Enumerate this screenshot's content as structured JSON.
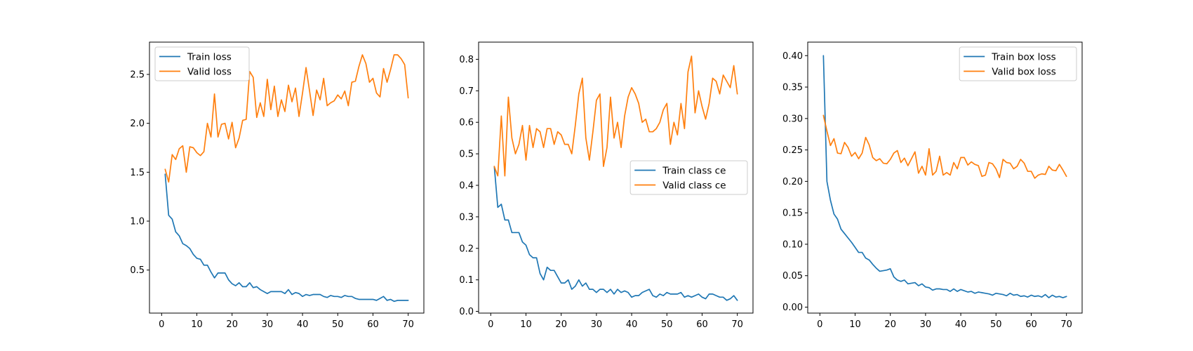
{
  "chart_data": [
    {
      "type": "line",
      "title": "",
      "xlabel": "",
      "ylabel": "",
      "xlim": [
        -3.45,
        74.45
      ],
      "ylim": [
        0.06,
        2.83
      ],
      "xticks": [
        0,
        10,
        20,
        30,
        40,
        50,
        60,
        70
      ],
      "yticks": [
        0.5,
        1.0,
        1.5,
        2.0,
        2.5
      ],
      "ytick_labels": [
        "0.5",
        "1.0",
        "1.5",
        "2.0",
        "2.5"
      ],
      "legend_position": "top-left",
      "x": [
        1,
        2,
        3,
        4,
        5,
        6,
        7,
        8,
        9,
        10,
        11,
        12,
        13,
        14,
        15,
        16,
        17,
        18,
        19,
        20,
        21,
        22,
        23,
        24,
        25,
        26,
        27,
        28,
        29,
        30,
        31,
        32,
        33,
        34,
        35,
        36,
        37,
        38,
        39,
        40,
        41,
        42,
        43,
        44,
        45,
        46,
        47,
        48,
        49,
        50,
        51,
        52,
        53,
        54,
        55,
        56,
        57,
        58,
        59,
        60,
        61,
        62,
        63,
        64,
        65,
        66,
        67,
        68,
        69,
        70
      ],
      "series": [
        {
          "name": "Train loss",
          "color": "#1f77b4",
          "values": [
            1.48,
            1.06,
            1.02,
            0.89,
            0.85,
            0.77,
            0.75,
            0.72,
            0.66,
            0.62,
            0.61,
            0.55,
            0.55,
            0.48,
            0.42,
            0.47,
            0.47,
            0.47,
            0.4,
            0.36,
            0.34,
            0.37,
            0.33,
            0.33,
            0.37,
            0.32,
            0.33,
            0.3,
            0.28,
            0.26,
            0.28,
            0.28,
            0.28,
            0.28,
            0.26,
            0.3,
            0.25,
            0.27,
            0.26,
            0.23,
            0.25,
            0.24,
            0.25,
            0.25,
            0.25,
            0.23,
            0.22,
            0.24,
            0.23,
            0.23,
            0.22,
            0.24,
            0.23,
            0.23,
            0.21,
            0.2,
            0.2,
            0.2,
            0.2,
            0.2,
            0.19,
            0.21,
            0.23,
            0.19,
            0.2,
            0.18,
            0.19,
            0.19,
            0.19,
            0.19
          ]
        },
        {
          "name": "Valid loss",
          "color": "#ff7f0e",
          "values": [
            1.53,
            1.4,
            1.68,
            1.63,
            1.74,
            1.77,
            1.5,
            1.76,
            1.75,
            1.7,
            1.67,
            1.71,
            2.0,
            1.86,
            2.3,
            1.86,
            1.99,
            2.0,
            1.84,
            2.01,
            1.75,
            1.85,
            2.03,
            2.04,
            2.53,
            2.47,
            2.06,
            2.21,
            2.07,
            2.45,
            2.14,
            2.38,
            2.07,
            2.24,
            2.12,
            2.39,
            2.22,
            2.36,
            2.07,
            2.31,
            2.57,
            2.33,
            2.08,
            2.34,
            2.24,
            2.46,
            2.18,
            2.21,
            2.23,
            2.29,
            2.25,
            2.33,
            2.18,
            2.42,
            2.43,
            2.58,
            2.7,
            2.61,
            2.42,
            2.46,
            2.31,
            2.27,
            2.56,
            2.42,
            2.55,
            2.7,
            2.7,
            2.66,
            2.6,
            2.26
          ]
        }
      ]
    },
    {
      "type": "line",
      "title": "",
      "xlabel": "",
      "ylabel": "",
      "xlim": [
        -3.45,
        74.45
      ],
      "ylim": [
        -0.0055,
        0.8545
      ],
      "xticks": [
        0,
        10,
        20,
        30,
        40,
        50,
        60,
        70
      ],
      "yticks": [
        0.0,
        0.1,
        0.2,
        0.3,
        0.4,
        0.5,
        0.6,
        0.7,
        0.8
      ],
      "ytick_labels": [
        "0.0",
        "0.1",
        "0.2",
        "0.3",
        "0.4",
        "0.5",
        "0.6",
        "0.7",
        "0.8"
      ],
      "legend_position": "center-right",
      "x": [
        1,
        2,
        3,
        4,
        5,
        6,
        7,
        8,
        9,
        10,
        11,
        12,
        13,
        14,
        15,
        16,
        17,
        18,
        19,
        20,
        21,
        22,
        23,
        24,
        25,
        26,
        27,
        28,
        29,
        30,
        31,
        32,
        33,
        34,
        35,
        36,
        37,
        38,
        39,
        40,
        41,
        42,
        43,
        44,
        45,
        46,
        47,
        48,
        49,
        50,
        51,
        52,
        53,
        54,
        55,
        56,
        57,
        58,
        59,
        60,
        61,
        62,
        63,
        64,
        65,
        66,
        67,
        68,
        69,
        70
      ],
      "series": [
        {
          "name": "Train class ce",
          "color": "#1f77b4",
          "values": [
            0.46,
            0.33,
            0.34,
            0.29,
            0.29,
            0.25,
            0.25,
            0.25,
            0.22,
            0.21,
            0.18,
            0.17,
            0.17,
            0.12,
            0.1,
            0.14,
            0.13,
            0.13,
            0.11,
            0.09,
            0.09,
            0.1,
            0.07,
            0.08,
            0.1,
            0.08,
            0.09,
            0.07,
            0.07,
            0.06,
            0.07,
            0.07,
            0.06,
            0.07,
            0.055,
            0.07,
            0.06,
            0.065,
            0.06,
            0.045,
            0.05,
            0.05,
            0.06,
            0.065,
            0.07,
            0.05,
            0.045,
            0.055,
            0.05,
            0.06,
            0.055,
            0.055,
            0.055,
            0.06,
            0.045,
            0.05,
            0.045,
            0.05,
            0.055,
            0.045,
            0.04,
            0.055,
            0.055,
            0.05,
            0.045,
            0.045,
            0.035,
            0.04,
            0.05,
            0.035
          ]
        },
        {
          "name": "Valid class ce",
          "color": "#ff7f0e",
          "values": [
            0.46,
            0.43,
            0.62,
            0.43,
            0.68,
            0.55,
            0.5,
            0.53,
            0.59,
            0.48,
            0.59,
            0.52,
            0.58,
            0.57,
            0.52,
            0.58,
            0.58,
            0.53,
            0.57,
            0.56,
            0.53,
            0.53,
            0.5,
            0.59,
            0.69,
            0.74,
            0.55,
            0.48,
            0.57,
            0.67,
            0.69,
            0.46,
            0.52,
            0.68,
            0.55,
            0.6,
            0.52,
            0.62,
            0.68,
            0.71,
            0.69,
            0.66,
            0.6,
            0.61,
            0.57,
            0.57,
            0.58,
            0.6,
            0.64,
            0.66,
            0.53,
            0.6,
            0.56,
            0.66,
            0.58,
            0.76,
            0.81,
            0.63,
            0.7,
            0.65,
            0.61,
            0.66,
            0.74,
            0.73,
            0.69,
            0.75,
            0.73,
            0.71,
            0.78,
            0.69
          ]
        }
      ]
    },
    {
      "type": "line",
      "title": "",
      "xlabel": "",
      "ylabel": "",
      "xlim": [
        -3.45,
        74.45
      ],
      "ylim": [
        -0.0095,
        0.4215
      ],
      "xticks": [
        0,
        10,
        20,
        30,
        40,
        50,
        60,
        70
      ],
      "yticks": [
        0.0,
        0.05,
        0.1,
        0.15,
        0.2,
        0.25,
        0.3,
        0.35,
        0.4
      ],
      "ytick_labels": [
        "0.00",
        "0.05",
        "0.10",
        "0.15",
        "0.20",
        "0.25",
        "0.30",
        "0.35",
        "0.40"
      ],
      "legend_position": "top-right",
      "x": [
        1,
        2,
        3,
        4,
        5,
        6,
        7,
        8,
        9,
        10,
        11,
        12,
        13,
        14,
        15,
        16,
        17,
        18,
        19,
        20,
        21,
        22,
        23,
        24,
        25,
        26,
        27,
        28,
        29,
        30,
        31,
        32,
        33,
        34,
        35,
        36,
        37,
        38,
        39,
        40,
        41,
        42,
        43,
        44,
        45,
        46,
        47,
        48,
        49,
        50,
        51,
        52,
        53,
        54,
        55,
        56,
        57,
        58,
        59,
        60,
        61,
        62,
        63,
        64,
        65,
        66,
        67,
        68,
        69,
        70
      ],
      "series": [
        {
          "name": "Train box loss",
          "color": "#1f77b4",
          "values": [
            0.4,
            0.2,
            0.17,
            0.148,
            0.14,
            0.124,
            0.117,
            0.11,
            0.103,
            0.095,
            0.087,
            0.087,
            0.078,
            0.075,
            0.068,
            0.062,
            0.057,
            0.058,
            0.059,
            0.061,
            0.048,
            0.043,
            0.041,
            0.043,
            0.037,
            0.038,
            0.039,
            0.034,
            0.037,
            0.032,
            0.031,
            0.027,
            0.029,
            0.029,
            0.028,
            0.028,
            0.025,
            0.029,
            0.025,
            0.028,
            0.026,
            0.024,
            0.025,
            0.022,
            0.024,
            0.023,
            0.022,
            0.021,
            0.019,
            0.022,
            0.021,
            0.02,
            0.018,
            0.022,
            0.019,
            0.02,
            0.017,
            0.018,
            0.016,
            0.019,
            0.017,
            0.018,
            0.016,
            0.02,
            0.015,
            0.019,
            0.016,
            0.017,
            0.015,
            0.017
          ]
        },
        {
          "name": "Valid box loss",
          "color": "#ff7f0e",
          "values": [
            0.305,
            0.28,
            0.257,
            0.268,
            0.245,
            0.244,
            0.262,
            0.254,
            0.24,
            0.246,
            0.236,
            0.245,
            0.27,
            0.258,
            0.238,
            0.233,
            0.236,
            0.229,
            0.228,
            0.235,
            0.245,
            0.249,
            0.23,
            0.237,
            0.225,
            0.236,
            0.247,
            0.213,
            0.224,
            0.21,
            0.252,
            0.21,
            0.216,
            0.24,
            0.21,
            0.214,
            0.21,
            0.23,
            0.22,
            0.238,
            0.238,
            0.226,
            0.231,
            0.227,
            0.225,
            0.208,
            0.21,
            0.23,
            0.228,
            0.22,
            0.206,
            0.235,
            0.23,
            0.229,
            0.22,
            0.224,
            0.235,
            0.229,
            0.216,
            0.216,
            0.205,
            0.21,
            0.212,
            0.211,
            0.224,
            0.218,
            0.217,
            0.227,
            0.218,
            0.208
          ]
        }
      ]
    }
  ]
}
